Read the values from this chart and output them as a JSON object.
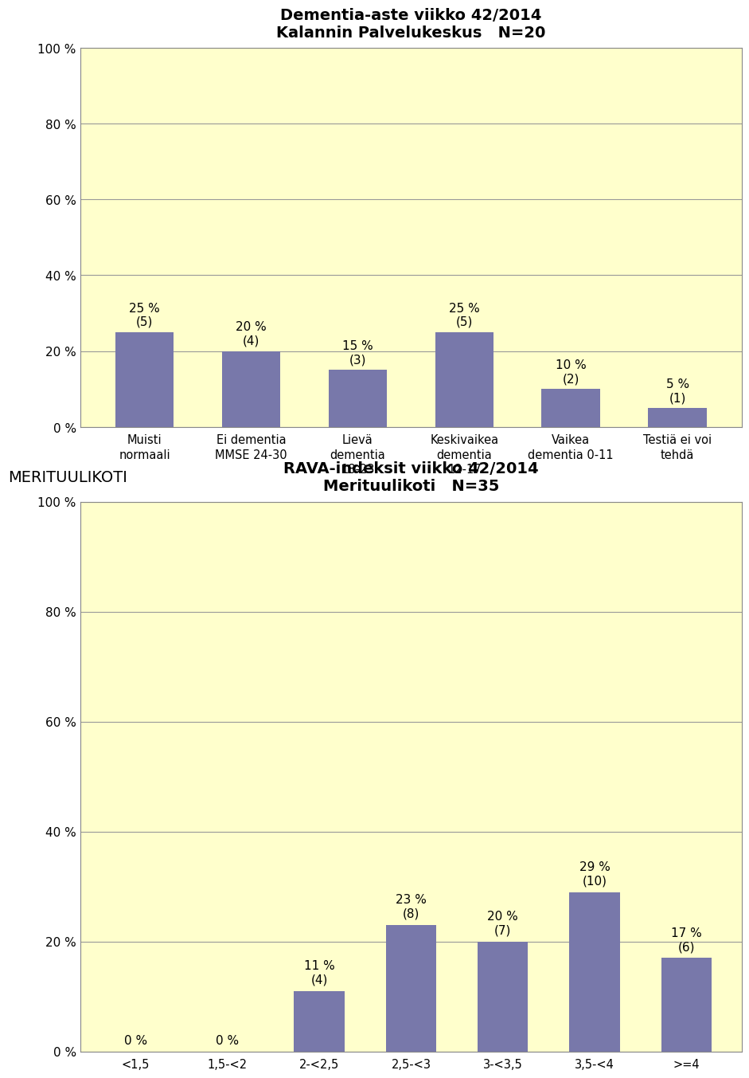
{
  "chart1": {
    "title_line1": "Dementia-aste viikko 42/2014",
    "title_line2": "Kalannin Palvelukeskus   N=20",
    "categories": [
      "Muisti\nnormaali",
      "Ei dementia\nMMSE 24-30",
      "Lievä\ndementia\n18-23",
      "Keskivaikea\ndementia\n12-17",
      "Vaikea\ndementia 0-11",
      "Testiä ei voi\ntehdä"
    ],
    "values": [
      25,
      20,
      15,
      25,
      10,
      5
    ],
    "counts": [
      5,
      4,
      3,
      5,
      2,
      1
    ],
    "bar_color": "#7878aa",
    "bg_color": "#ffffcc",
    "ylim": [
      0,
      100
    ],
    "yticks": [
      0,
      20,
      40,
      60,
      80,
      100
    ],
    "ytick_labels": [
      "0 %",
      "20 %",
      "40 %",
      "60 %",
      "80 %",
      "100 %"
    ]
  },
  "chart2": {
    "title_line1": "RAVA-indeksit viikko 42/2014",
    "title_line2": "Merituulikoti   N=35",
    "categories": [
      "<1,5",
      "1,5-<2",
      "2-<2,5",
      "2,5-<3",
      "3-<3,5",
      "3,5-<4",
      ">=4"
    ],
    "values": [
      0,
      0,
      11,
      23,
      20,
      29,
      17
    ],
    "counts": [
      null,
      null,
      4,
      8,
      7,
      10,
      6
    ],
    "bar_color": "#7878aa",
    "bg_color": "#ffffcc",
    "ylim": [
      0,
      100
    ],
    "yticks": [
      0,
      20,
      40,
      60,
      80,
      100
    ],
    "ytick_labels": [
      "0 %",
      "20 %",
      "40 %",
      "60 %",
      "80 %",
      "100 %"
    ]
  },
  "section_label": "MERITUULIKOTI",
  "page_bg": "#ffffff",
  "title_fontsize": 14,
  "label_fontsize": 10.5,
  "tick_fontsize": 11,
  "annot_fontsize": 11
}
